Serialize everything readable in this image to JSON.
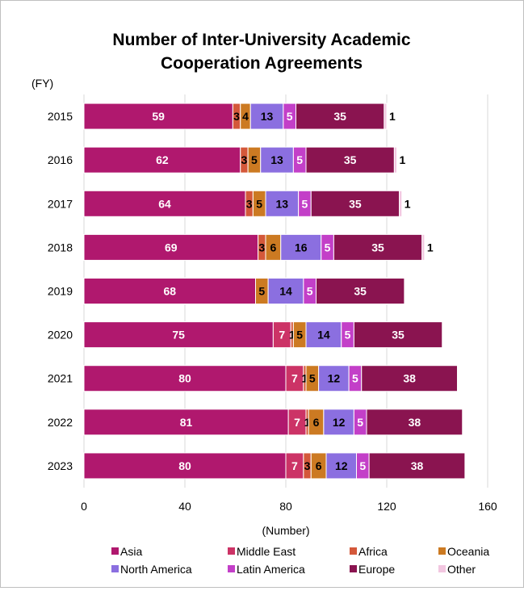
{
  "chart_data": {
    "type": "bar",
    "orientation": "horizontal",
    "stacked": true,
    "title_lines": [
      "Number of Inter-University Academic",
      "Cooperation Agreements"
    ],
    "y_unit_label": "(FY)",
    "xlabel": "(Number)",
    "xlim": [
      0,
      160
    ],
    "x_ticks": [
      "0",
      "40",
      "80",
      "120",
      "160"
    ],
    "grid": "vertical",
    "legend_position": "bottom",
    "categories": [
      "2015",
      "2016",
      "2017",
      "2018",
      "2019",
      "2020",
      "2021",
      "2022",
      "2023"
    ],
    "series": [
      {
        "name": "Asia",
        "color": "#b0186e",
        "label_color": "#ffffff",
        "values": [
          59,
          62,
          64,
          69,
          68,
          75,
          80,
          81,
          80
        ]
      },
      {
        "name": "Middle East",
        "color": "#cc3366",
        "label_color": "#ffffff",
        "values": [
          0,
          0,
          0,
          0,
          0,
          7,
          7,
          7,
          7
        ]
      },
      {
        "name": "Africa",
        "color": "#d4583a",
        "label_color": "#000000",
        "values": [
          3,
          3,
          3,
          3,
          0,
          1,
          1,
          1,
          3
        ]
      },
      {
        "name": "Oceania",
        "color": "#cc7a22",
        "label_color": "#000000",
        "values": [
          4,
          5,
          5,
          6,
          5,
          5,
          5,
          6,
          6
        ]
      },
      {
        "name": "North America",
        "color": "#8b6fe0",
        "label_color": "#000000",
        "values": [
          13,
          13,
          13,
          16,
          14,
          14,
          12,
          12,
          12
        ]
      },
      {
        "name": "Latin America",
        "color": "#c33fc8",
        "label_color": "#ffffff",
        "values": [
          5,
          5,
          5,
          5,
          5,
          5,
          5,
          5,
          5
        ]
      },
      {
        "name": "Europe",
        "color": "#8a1450",
        "label_color": "#ffffff",
        "values": [
          35,
          35,
          35,
          35,
          35,
          35,
          38,
          38,
          38
        ]
      },
      {
        "name": "Other",
        "color": "#f2c6e0",
        "label_color": "#000000",
        "values": [
          1,
          1,
          1,
          1,
          0,
          0,
          0,
          0,
          0
        ]
      }
    ]
  }
}
